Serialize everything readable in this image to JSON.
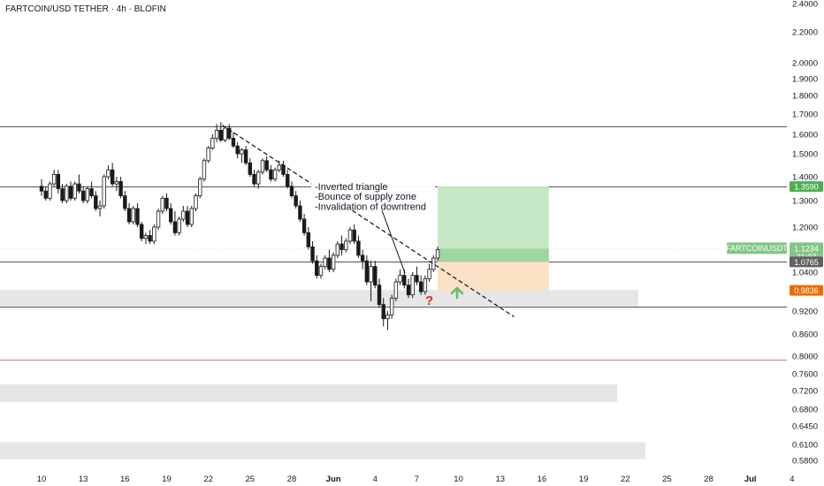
{
  "chart_data": {
    "type": "candlestick",
    "title": "FARTCOIN/USD TETHER · 4h · BLOFIN",
    "symbol_label": "FARTCOINUSDT",
    "price_axis_ticks": [
      "2.4000",
      "2.2000",
      "2.0000",
      "1.9000",
      "1.8000",
      "1.7000",
      "1.6000",
      "1.5000",
      "1.4000",
      "1.3000",
      "1.2000",
      "1.0400",
      "0.9200",
      "0.8600",
      "0.8000",
      "0.7600",
      "0.7200",
      "0.6800",
      "0.6450",
      "0.6100",
      "0.5800"
    ],
    "price_axis_values": [
      2.4,
      2.2,
      2.0,
      1.9,
      1.8,
      1.7,
      1.6,
      1.5,
      1.4,
      1.3,
      1.2,
      1.04,
      0.92,
      0.86,
      0.8,
      0.76,
      0.72,
      0.68,
      0.645,
      0.61,
      0.58
    ],
    "time_axis_labels": [
      "10",
      "13",
      "16",
      "19",
      "22",
      "25",
      "28",
      "Jun",
      "4",
      "7",
      "10",
      "13",
      "16",
      "19",
      "22",
      "25",
      "28",
      "Jul",
      "4"
    ],
    "time_axis_days": [
      10,
      13,
      16,
      19,
      22,
      25,
      28,
      31,
      34,
      37,
      40,
      43,
      46,
      49,
      52,
      55,
      58,
      61,
      64
    ],
    "price_labels": {
      "current_price": "1.1234",
      "countdown": "31:07",
      "target": "1.3590",
      "entry": "1.0765",
      "stop": "0.9836"
    },
    "annotation_lines": [
      "-Inverted triangle",
      "-Bounce of supply zone",
      "-Invalidation of downtrend"
    ],
    "question_mark": "?",
    "horizontal_levels": [
      1.64,
      1.359,
      1.0765,
      0.935
    ],
    "red_level": 0.792,
    "gray_zones": [
      [
        0.935,
        0.985
      ],
      [
        0.695,
        0.735
      ],
      [
        0.582,
        0.614
      ]
    ],
    "trendline": {
      "from": [
        23,
        1.645
      ],
      "to": [
        44,
        0.905
      ]
    },
    "position": {
      "start_day": 38.5,
      "end_day": 46.5,
      "target": 1.359,
      "entry": 1.0765,
      "stop": 0.9836,
      "filled_to": 1.1234
    },
    "candles": [
      [
        10.0,
        1.36,
        1.39,
        1.32,
        1.34
      ],
      [
        10.3,
        1.34,
        1.36,
        1.3,
        1.31
      ],
      [
        10.6,
        1.31,
        1.38,
        1.3,
        1.37
      ],
      [
        10.9,
        1.37,
        1.43,
        1.36,
        1.41
      ],
      [
        11.2,
        1.41,
        1.43,
        1.33,
        1.35
      ],
      [
        11.5,
        1.35,
        1.37,
        1.29,
        1.3
      ],
      [
        11.8,
        1.3,
        1.37,
        1.29,
        1.36
      ],
      [
        12.1,
        1.36,
        1.38,
        1.3,
        1.31
      ],
      [
        12.4,
        1.31,
        1.38,
        1.3,
        1.37
      ],
      [
        12.7,
        1.37,
        1.41,
        1.33,
        1.34
      ],
      [
        13.0,
        1.34,
        1.36,
        1.29,
        1.3
      ],
      [
        13.3,
        1.3,
        1.36,
        1.29,
        1.35
      ],
      [
        13.6,
        1.35,
        1.38,
        1.31,
        1.32
      ],
      [
        13.9,
        1.32,
        1.34,
        1.26,
        1.27
      ],
      [
        14.2,
        1.27,
        1.3,
        1.24,
        1.28
      ],
      [
        14.5,
        1.28,
        1.41,
        1.27,
        1.4
      ],
      [
        14.8,
        1.4,
        1.45,
        1.39,
        1.43
      ],
      [
        15.1,
        1.43,
        1.46,
        1.36,
        1.37
      ],
      [
        15.4,
        1.37,
        1.4,
        1.34,
        1.38
      ],
      [
        15.7,
        1.38,
        1.4,
        1.31,
        1.32
      ],
      [
        16.0,
        1.32,
        1.34,
        1.26,
        1.27
      ],
      [
        16.3,
        1.27,
        1.29,
        1.21,
        1.22
      ],
      [
        16.6,
        1.22,
        1.28,
        1.21,
        1.27
      ],
      [
        16.9,
        1.27,
        1.29,
        1.2,
        1.21
      ],
      [
        17.2,
        1.21,
        1.22,
        1.15,
        1.16
      ],
      [
        17.5,
        1.16,
        1.18,
        1.14,
        1.17
      ],
      [
        17.8,
        1.17,
        1.19,
        1.14,
        1.15
      ],
      [
        18.1,
        1.15,
        1.21,
        1.14,
        1.2
      ],
      [
        18.4,
        1.2,
        1.27,
        1.19,
        1.26
      ],
      [
        18.7,
        1.26,
        1.32,
        1.25,
        1.31
      ],
      [
        19.0,
        1.31,
        1.33,
        1.26,
        1.27
      ],
      [
        19.3,
        1.27,
        1.29,
        1.21,
        1.22
      ],
      [
        19.6,
        1.22,
        1.26,
        1.17,
        1.18
      ],
      [
        19.9,
        1.18,
        1.24,
        1.17,
        1.23
      ],
      [
        20.2,
        1.23,
        1.28,
        1.22,
        1.26
      ],
      [
        20.5,
        1.26,
        1.28,
        1.2,
        1.21
      ],
      [
        20.8,
        1.21,
        1.28,
        1.2,
        1.27
      ],
      [
        21.1,
        1.27,
        1.33,
        1.26,
        1.32
      ],
      [
        21.4,
        1.32,
        1.4,
        1.31,
        1.39
      ],
      [
        21.7,
        1.39,
        1.48,
        1.38,
        1.47
      ],
      [
        22.0,
        1.47,
        1.54,
        1.46,
        1.53
      ],
      [
        22.3,
        1.53,
        1.6,
        1.52,
        1.58
      ],
      [
        22.6,
        1.58,
        1.65,
        1.56,
        1.62
      ],
      [
        22.9,
        1.62,
        1.66,
        1.56,
        1.57
      ],
      [
        23.2,
        1.57,
        1.64,
        1.56,
        1.63
      ],
      [
        23.5,
        1.63,
        1.65,
        1.57,
        1.58
      ],
      [
        23.8,
        1.58,
        1.61,
        1.53,
        1.54
      ],
      [
        24.1,
        1.54,
        1.56,
        1.48,
        1.5
      ],
      [
        24.4,
        1.5,
        1.53,
        1.46,
        1.52
      ],
      [
        24.7,
        1.52,
        1.54,
        1.45,
        1.46
      ],
      [
        25.0,
        1.46,
        1.48,
        1.4,
        1.41
      ],
      [
        25.3,
        1.41,
        1.43,
        1.36,
        1.37
      ],
      [
        25.6,
        1.37,
        1.43,
        1.35,
        1.42
      ],
      [
        25.9,
        1.42,
        1.48,
        1.41,
        1.47
      ],
      [
        26.2,
        1.47,
        1.49,
        1.42,
        1.43
      ],
      [
        26.5,
        1.43,
        1.45,
        1.38,
        1.39
      ],
      [
        26.8,
        1.39,
        1.44,
        1.38,
        1.43
      ],
      [
        27.1,
        1.43,
        1.47,
        1.42,
        1.45
      ],
      [
        27.4,
        1.45,
        1.47,
        1.4,
        1.41
      ],
      [
        27.7,
        1.41,
        1.43,
        1.35,
        1.36
      ],
      [
        28.0,
        1.36,
        1.38,
        1.31,
        1.32
      ],
      [
        28.3,
        1.32,
        1.34,
        1.27,
        1.28
      ],
      [
        28.6,
        1.28,
        1.3,
        1.22,
        1.23
      ],
      [
        28.9,
        1.23,
        1.25,
        1.17,
        1.18
      ],
      [
        29.2,
        1.18,
        1.2,
        1.12,
        1.13
      ],
      [
        29.5,
        1.13,
        1.15,
        1.07,
        1.08
      ],
      [
        29.8,
        1.08,
        1.1,
        1.02,
        1.03
      ],
      [
        30.1,
        1.03,
        1.07,
        1.02,
        1.06
      ],
      [
        30.4,
        1.06,
        1.1,
        1.05,
        1.09
      ],
      [
        30.7,
        1.09,
        1.12,
        1.04,
        1.05
      ],
      [
        31.0,
        1.05,
        1.11,
        1.04,
        1.1
      ],
      [
        31.3,
        1.1,
        1.15,
        1.09,
        1.14
      ],
      [
        31.6,
        1.14,
        1.17,
        1.1,
        1.12
      ],
      [
        31.9,
        1.12,
        1.16,
        1.11,
        1.15
      ],
      [
        32.2,
        1.15,
        1.2,
        1.14,
        1.19
      ],
      [
        32.5,
        1.19,
        1.21,
        1.14,
        1.15
      ],
      [
        32.8,
        1.15,
        1.17,
        1.09,
        1.1
      ],
      [
        33.1,
        1.1,
        1.12,
        1.05,
        1.08
      ],
      [
        33.4,
        1.08,
        1.1,
        1.0,
        1.01
      ],
      [
        33.7,
        1.01,
        1.08,
        0.95,
        1.06
      ],
      [
        34.0,
        1.06,
        1.08,
        0.99,
        1.0
      ],
      [
        34.3,
        1.0,
        1.02,
        0.93,
        0.94
      ],
      [
        34.6,
        0.94,
        0.96,
        0.88,
        0.9
      ],
      [
        34.9,
        0.9,
        0.92,
        0.87,
        0.91
      ],
      [
        35.2,
        0.91,
        0.97,
        0.9,
        0.96
      ],
      [
        35.5,
        0.96,
        1.02,
        0.95,
        1.01
      ],
      [
        35.8,
        1.01,
        1.05,
        1.0,
        1.03
      ],
      [
        36.1,
        1.03,
        1.05,
        0.99,
        1.0
      ],
      [
        36.4,
        1.0,
        1.02,
        0.96,
        0.97
      ],
      [
        36.7,
        0.97,
        1.04,
        0.96,
        1.03
      ],
      [
        37.0,
        1.03,
        1.06,
        1.0,
        1.01
      ],
      [
        37.3,
        1.01,
        1.03,
        0.97,
        0.98
      ],
      [
        37.6,
        0.98,
        1.03,
        0.97,
        1.02
      ],
      [
        37.9,
        1.02,
        1.07,
        1.01,
        1.05
      ],
      [
        38.2,
        1.05,
        1.1,
        1.04,
        1.09
      ],
      [
        38.5,
        1.09,
        1.13,
        1.08,
        1.12
      ]
    ]
  }
}
